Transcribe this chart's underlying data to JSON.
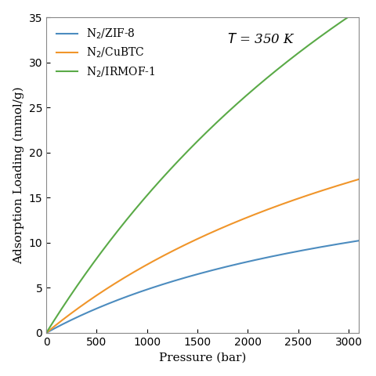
{
  "title_annotation": "$T$ = 350 K",
  "xlabel": "Pressure (bar)",
  "ylabel": "Adsorption Loading (mmol/g)",
  "xlim": [
    0,
    3100
  ],
  "ylim": [
    0,
    35
  ],
  "xticks": [
    0,
    500,
    1000,
    1500,
    2000,
    2500,
    3000
  ],
  "yticks": [
    0,
    5,
    10,
    15,
    20,
    25,
    30,
    35
  ],
  "series": [
    {
      "label": "N$_2$/ZIF-8",
      "color": "#4c8cbf",
      "q_sat": 22.0,
      "b": 0.00028
    },
    {
      "label": "N$_2$/CuBTC",
      "color": "#f0952a",
      "q_sat": 42.0,
      "b": 0.00022
    },
    {
      "label": "N$_2$/IRMOF-1",
      "color": "#5aaa47",
      "q_sat": 100.0,
      "b": 0.00018
    }
  ],
  "legend_loc": "upper left",
  "figsize": [
    4.8,
    4.8
  ],
  "dpi": 100,
  "background_color": "#ffffff",
  "font_family": "DejaVu Serif"
}
